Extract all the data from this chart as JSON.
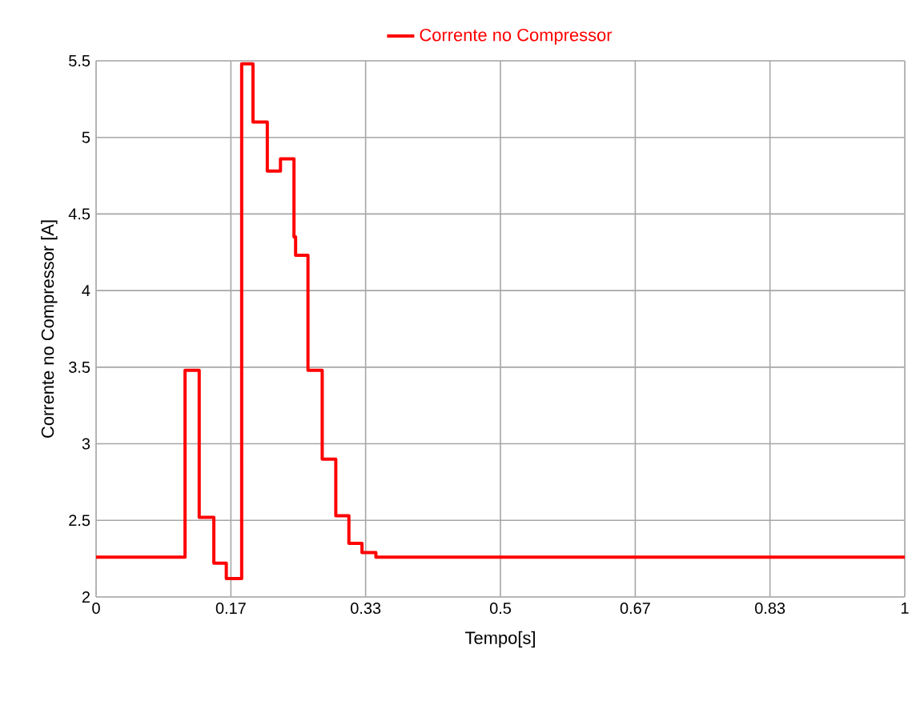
{
  "chart_data": {
    "type": "step",
    "xlabel": "Tempo[s]",
    "ylabel": "Corrente no Compressor [A]",
    "x": [
      0,
      0.11,
      0.1275,
      0.1456,
      0.161,
      0.18,
      0.194,
      0.2117,
      0.228,
      0.2447,
      0.2467,
      0.262,
      0.2796,
      0.2964,
      0.3126,
      0.3288,
      0.346,
      1
    ],
    "series": [
      {
        "name": "Corrente no Compressor",
        "color": "#ff0000",
        "values": [
          2.26,
          3.48,
          2.52,
          2.22,
          2.12,
          5.48,
          5.1,
          4.78,
          4.86,
          4.35,
          4.23,
          3.48,
          2.9,
          2.53,
          2.35,
          2.29,
          2.26,
          2.26
        ]
      }
    ],
    "xlim": [
      0,
      1
    ],
    "ylim": [
      2,
      5.5
    ],
    "xticks": [
      0,
      {
        "value": 0.1667,
        "label": "0.17"
      },
      {
        "value": 0.3333,
        "label": "0.33"
      },
      0.5,
      {
        "value": 0.6667,
        "label": "0.67"
      },
      {
        "value": 0.8333,
        "label": "0.83"
      },
      1
    ],
    "yticks": [
      2,
      2.5,
      3,
      3.5,
      4,
      4.5,
      5,
      5.5
    ],
    "grid": true,
    "legend": "top",
    "line_style": "solid",
    "marker": "none"
  }
}
